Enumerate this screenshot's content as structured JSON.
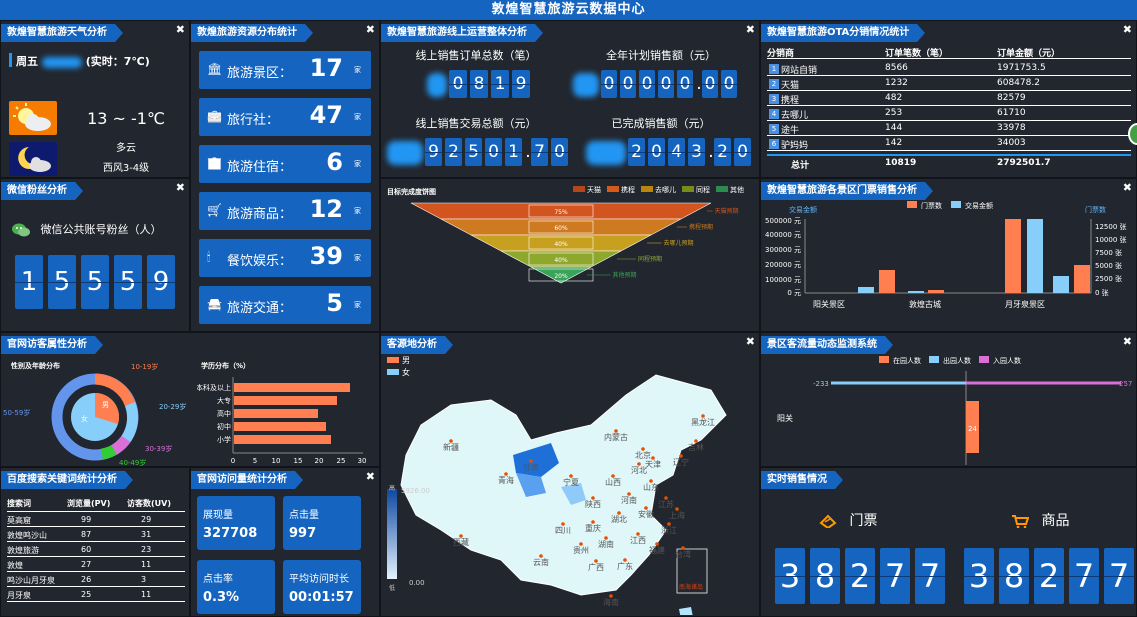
{
  "header": {
    "title": "敦煌智慧旅游云数据中心"
  },
  "weather": {
    "title": "敦煌智慧旅游天气分析",
    "day": "周五",
    "realtime": "(实时：7℃)",
    "temp": "13 ~ -1℃",
    "cond": "多云",
    "wind": "西风3-4级",
    "sun_icon": "partly-cloudy-icon",
    "moon_icon": "night-cloudy-icon"
  },
  "resources": {
    "title": "敦煌旅游资源分布统计",
    "unit": "家",
    "items": [
      {
        "label": "旅游景区：",
        "value": "17",
        "icon": "landmark-icon"
      },
      {
        "label": "旅行社：",
        "value": "47",
        "icon": "briefcase-icon"
      },
      {
        "label": "旅游住宿：",
        "value": "6",
        "icon": "building-icon"
      },
      {
        "label": "旅游商品：",
        "value": "12",
        "icon": "cart-icon"
      },
      {
        "label": "餐饮娱乐：",
        "value": "39",
        "icon": "torch-icon"
      },
      {
        "label": "旅游交通：",
        "value": "5",
        "icon": "car-icon"
      }
    ]
  },
  "online": {
    "title": "敦煌智慧旅游线上运营整体分析",
    "k1_label": "线上销售订单总数（笔）",
    "k1_digits": [
      "0",
      "8",
      "1",
      "9"
    ],
    "k2_label": "全年计划销售额（元）",
    "k2_digits": [
      "0",
      "0",
      "0",
      "0",
      "0",
      ".",
      "0",
      "0"
    ],
    "k3_label": "线上销售交易总额（元）",
    "k3_digits": [
      "9",
      "2",
      "5",
      "0",
      "1",
      ".",
      "7",
      "0"
    ],
    "k4_label": "已完成销售额（元）",
    "k4_digits": [
      "2",
      "0",
      "4",
      "3",
      ".",
      "2",
      "0"
    ],
    "funnel_title": "目标完成度饼图",
    "legend": [
      {
        "name": "天猫",
        "color": "#b5451b"
      },
      {
        "name": "携程",
        "color": "#d45a1e"
      },
      {
        "name": "去哪儿",
        "color": "#b8860b"
      },
      {
        "name": "同程",
        "color": "#7a8b1e"
      },
      {
        "name": "其他",
        "color": "#2e8b4e"
      }
    ],
    "funnel": [
      {
        "pct": "75%",
        "name": "天猫预期"
      },
      {
        "pct": "60%",
        "name": "携程预期"
      },
      {
        "pct": "40%",
        "name": "去哪儿预期"
      },
      {
        "pct": "40%",
        "name": "同程预期"
      },
      {
        "pct": "20%",
        "name": "其他预期"
      }
    ]
  },
  "ota": {
    "title": "敦煌智慧旅游OTA分销情况统计",
    "headers": [
      "分销商",
      "订单笔数（笔）",
      "订单金额（元）"
    ],
    "rows": [
      [
        "1",
        "网站自销",
        "8566",
        "1971753.5"
      ],
      [
        "2",
        "天猫",
        "1232",
        "608478.2"
      ],
      [
        "3",
        "携程",
        "482",
        "82579"
      ],
      [
        "4",
        "去哪儿",
        "253",
        "61710"
      ],
      [
        "5",
        "途牛",
        "144",
        "33978"
      ],
      [
        "6",
        "驴妈妈",
        "142",
        "34003"
      ]
    ],
    "total": [
      "总计",
      "10819",
      "2792501.7"
    ]
  },
  "fans": {
    "title": "微信粉丝分析",
    "label": "微信公共账号粉丝（人）",
    "digits": [
      "1",
      "5",
      "5",
      "5",
      "9"
    ]
  },
  "scenic": {
    "title": "敦煌智慧旅游各景区门票销售分析",
    "legend_tickets": "门票数",
    "legend_amount": "交易金额",
    "left_axis_name": "交易金额",
    "right_axis_name": "门票数",
    "left_ticks": [
      "500000 元",
      "400000 元",
      "300000 元",
      "200000 元",
      "100000 元",
      "0 元"
    ],
    "right_ticks": [
      "12500 张",
      "10000 张",
      "7500 张",
      "5000 张",
      "2500 张",
      "0 张"
    ]
  },
  "visitor": {
    "title": "官网访客属性分析",
    "donut_title": "性别及年龄分布",
    "center_male": "男",
    "center_female": "女",
    "age_labels": [
      "10-19岁",
      "20-29岁",
      "30-39岁",
      "40-49岁",
      "50-59岁"
    ],
    "edu_title": "学历分布（%）",
    "edu_ticks": [
      "0",
      "5",
      "10",
      "15",
      "20",
      "25",
      "30"
    ]
  },
  "origin": {
    "title": "客源地分析",
    "legend_male": "男",
    "legend_female": "女",
    "vmax": "5926.00",
    "vmin": "0.00",
    "scale_high": "高",
    "scale_low": "低",
    "provinces": [
      "黑龙江",
      "吉林",
      "辽宁",
      "内蒙古",
      "北京",
      "天津",
      "河北",
      "山西",
      "山东",
      "河南",
      "陕西",
      "宁夏",
      "甘肃",
      "青海",
      "新疆",
      "西藏",
      "四川",
      "重庆",
      "湖北",
      "安徽",
      "江苏",
      "上海",
      "浙江",
      "江西",
      "湖南",
      "贵州",
      "云南",
      "广西",
      "广东",
      "福建",
      "台湾",
      "海南"
    ],
    "inset_label": "南海诸岛"
  },
  "flow": {
    "title": "景区客流量动态监测系统",
    "legend_in": "在园人数",
    "legend_out": "出园人数",
    "legend_enter": "入园人数",
    "left_value": "-233",
    "right_value": "257",
    "bar_value": "24",
    "category": "阳关"
  },
  "baidu": {
    "title": "百度搜索关键词统计分析",
    "headers": [
      "搜索词",
      "浏览量(PV)",
      "访客数(UV)"
    ],
    "rows": [
      [
        "莫高窟",
        "99",
        "29"
      ],
      [
        "敦煌鸣沙山",
        "87",
        "31"
      ],
      [
        "敦煌旅游",
        "60",
        "23"
      ],
      [
        "敦煌",
        "27",
        "11"
      ],
      [
        "鸣沙山月牙泉",
        "26",
        "3"
      ],
      [
        "月牙泉",
        "25",
        "11"
      ]
    ]
  },
  "visits": {
    "title": "官网访问量统计分析",
    "items": [
      {
        "label": "展现量",
        "value": "327708"
      },
      {
        "label": "点击量",
        "value": "997"
      },
      {
        "label": "点击率",
        "value": "0.3%"
      },
      {
        "label": "平均访问时长",
        "value": "00:01:57"
      }
    ]
  },
  "sales": {
    "title": "实时销售情况",
    "ticket_label": "门票",
    "goods_label": "商品",
    "ticket_digits": [
      "3",
      "8",
      "2",
      "7",
      "7"
    ],
    "goods_digits": [
      "3",
      "8",
      "2",
      "7",
      "7"
    ]
  }
}
